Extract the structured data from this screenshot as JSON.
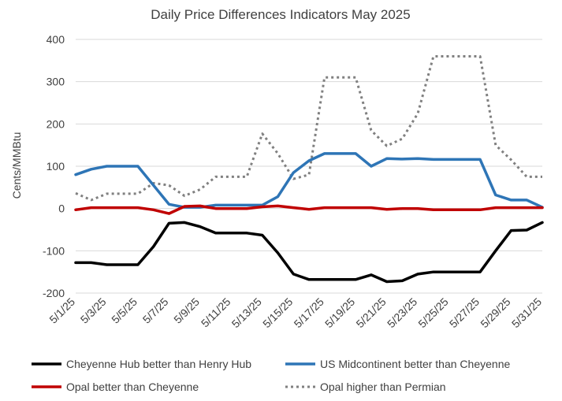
{
  "chart_data": {
    "type": "line",
    "title": "Daily Price Differences Indicators May 2025",
    "xlabel": "",
    "ylabel": "Cents/MMBtu",
    "ylim": [
      -200,
      400
    ],
    "yticks": [
      -200,
      -100,
      0,
      100,
      200,
      300,
      400
    ],
    "ytick_labels": [
      "-200",
      "-100",
      "0",
      "100",
      "200",
      "300",
      "400"
    ],
    "grid": "horizontal",
    "legend": "bottom",
    "categories": [
      "5/1/25",
      "5/2/25",
      "5/3/25",
      "5/4/25",
      "5/5/25",
      "5/6/25",
      "5/7/25",
      "5/8/25",
      "5/9/25",
      "5/10/25",
      "5/11/25",
      "5/12/25",
      "5/13/25",
      "5/14/25",
      "5/15/25",
      "5/16/25",
      "5/17/25",
      "5/18/25",
      "5/19/25",
      "5/20/25",
      "5/21/25",
      "5/22/25",
      "5/23/25",
      "5/24/25",
      "5/25/25",
      "5/26/25",
      "5/27/25",
      "5/28/25",
      "5/29/25",
      "5/30/25",
      "5/31/25"
    ],
    "tick_labels": [
      "5/1/25",
      "5/3/25",
      "5/5/25",
      "5/7/25",
      "5/9/25",
      "5/11/25",
      "5/13/25",
      "5/15/25",
      "5/17/25",
      "5/19/25",
      "5/21/25",
      "5/23/25",
      "5/25/25",
      "5/27/25",
      "5/29/25",
      "5/31/25"
    ],
    "series": [
      {
        "name": "Cheyenne Hub better than Henry Hub",
        "color": "#000000",
        "style": "solid",
        "values": [
          -128,
          -128,
          -133,
          -133,
          -133,
          -90,
          -35,
          -33,
          -43,
          -58,
          -58,
          -58,
          -63,
          -105,
          -155,
          -168,
          -168,
          -168,
          -168,
          -157,
          -173,
          -171,
          -155,
          -150,
          -150,
          -150,
          -150,
          -100,
          -52,
          -51,
          -33
        ]
      },
      {
        "name": "US Midcontinent better than Cheyenne",
        "color": "#2e75b6",
        "style": "solid",
        "values": [
          80,
          93,
          100,
          100,
          100,
          55,
          10,
          3,
          3,
          8,
          8,
          8,
          8,
          28,
          85,
          113,
          130,
          130,
          130,
          100,
          118,
          117,
          118,
          116,
          116,
          116,
          116,
          32,
          20,
          20,
          3
        ]
      },
      {
        "name": "Opal better than Cheyenne",
        "color": "#c00000",
        "style": "solid",
        "values": [
          -3,
          2,
          2,
          2,
          2,
          -3,
          -12,
          5,
          6,
          0,
          0,
          0,
          4,
          6,
          2,
          -2,
          2,
          2,
          2,
          2,
          -2,
          0,
          0,
          -3,
          -3,
          -3,
          -3,
          2,
          2,
          2,
          2
        ]
      },
      {
        "name": "Opal higher than Permian",
        "color": "#808080",
        "style": "dotted",
        "values": [
          36,
          20,
          35,
          35,
          35,
          60,
          55,
          30,
          45,
          75,
          75,
          75,
          177,
          130,
          70,
          80,
          310,
          310,
          310,
          185,
          148,
          165,
          225,
          360,
          360,
          360,
          360,
          150,
          115,
          75,
          75
        ]
      }
    ]
  }
}
